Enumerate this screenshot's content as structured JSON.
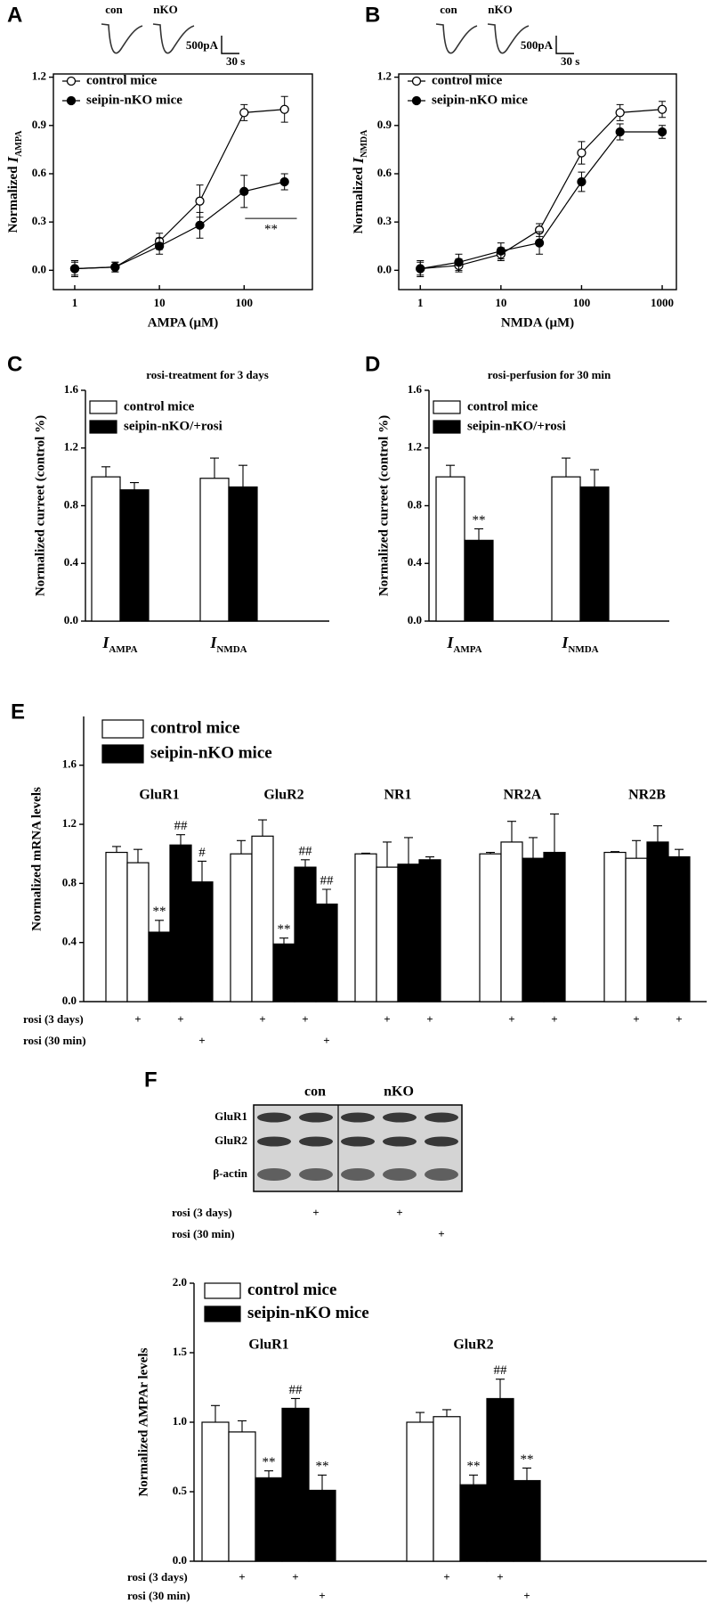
{
  "chart_data": [
    {
      "type": "line",
      "panel": "A",
      "inset": {
        "labels": [
          "con",
          "nKO"
        ],
        "scalebar": [
          "500pA",
          "30 s"
        ]
      },
      "x": [
        1,
        3,
        10,
        30,
        100,
        300
      ],
      "xscale": "log",
      "xlim": [
        0.56,
        640
      ],
      "xticks": [
        1,
        10,
        100
      ],
      "ylim": [
        -0.12,
        1.22
      ],
      "yticks": [
        {
          "value": 0,
          "label": "0.0"
        },
        0.3,
        0.6,
        0.9,
        1.2
      ],
      "xlabel": "AMPA (μM)",
      "ylabel": [
        "Normalized",
        "I",
        "AMPA"
      ],
      "frame": "box",
      "legend_loc": "upper left",
      "annotation": "**",
      "series": [
        {
          "name": "control mice",
          "color": "#000000",
          "marker": "open",
          "values": [
            0.01,
            0.02,
            0.18,
            0.43,
            0.98,
            1.0
          ],
          "errors": [
            0.05,
            0.03,
            0.05,
            0.1,
            0.05,
            0.08
          ]
        },
        {
          "name": "seipin-nKO mice",
          "color": "#000000",
          "marker": "filled",
          "values": [
            0.01,
            0.02,
            0.15,
            0.28,
            0.49,
            0.55
          ],
          "errors": [
            0.04,
            0.03,
            0.05,
            0.08,
            0.1,
            0.05
          ]
        }
      ]
    },
    {
      "type": "line",
      "panel": "B",
      "inset": {
        "labels": [
          "con",
          "nKO"
        ],
        "scalebar": [
          "500pA",
          "30 s"
        ]
      },
      "x": [
        1,
        3,
        10,
        30,
        100,
        300,
        1000
      ],
      "xscale": "log",
      "xlim": [
        0.54,
        1500
      ],
      "xticks": [
        1,
        10,
        100,
        1000
      ],
      "ylim": [
        -0.12,
        1.22
      ],
      "yticks": [
        {
          "value": 0,
          "label": "0.0"
        },
        0.3,
        0.6,
        0.9,
        1.2
      ],
      "xlabel": "NMDA (μM)",
      "ylabel": [
        "Normalized",
        "I",
        "NMDA"
      ],
      "frame": "box",
      "legend_loc": "upper left",
      "series": [
        {
          "name": "control mice",
          "color": "#000000",
          "marker": "open",
          "values": [
            0.01,
            0.03,
            0.1,
            0.25,
            0.73,
            0.98,
            1.0
          ],
          "errors": [
            0.05,
            0.04,
            0.04,
            0.04,
            0.07,
            0.05,
            0.05
          ]
        },
        {
          "name": "seipin-nKO mice",
          "color": "#000000",
          "marker": "filled",
          "values": [
            0.01,
            0.05,
            0.12,
            0.17,
            0.55,
            0.86,
            0.86
          ],
          "errors": [
            0.04,
            0.05,
            0.05,
            0.07,
            0.06,
            0.05,
            0.04
          ]
        }
      ]
    },
    {
      "type": "bar",
      "panel": "C",
      "title": "rosi-treatment for 3 days",
      "categories": [
        "I",
        "I"
      ],
      "category_subscripts": [
        "AMPA",
        "NMDA"
      ],
      "category_position": "bottom",
      "ylim": [
        0,
        1.6
      ],
      "yticks": [
        {
          "value": 0,
          "label": "0.0"
        },
        0.4,
        0.8,
        1.2,
        1.6
      ],
      "ylabel": "Normalized curreet (control %)",
      "frame": "axes",
      "legend_loc": "upper left",
      "series": [
        {
          "name": "control mice",
          "color": "#ffffff",
          "values": [
            1.0,
            0.99
          ],
          "errors": [
            0.07,
            0.14
          ]
        },
        {
          "name": "seipin-nKO/+rosi",
          "color": "#000000",
          "values": [
            0.91,
            0.93
          ],
          "errors": [
            0.05,
            0.15
          ]
        }
      ]
    },
    {
      "type": "bar",
      "panel": "D",
      "title": "rosi-perfusion for 30 min",
      "categories": [
        "I",
        "I"
      ],
      "category_subscripts": [
        "AMPA",
        "NMDA"
      ],
      "category_position": "bottom",
      "ylim": [
        0,
        1.6
      ],
      "yticks": [
        {
          "value": 0,
          "label": "0.0"
        },
        0.4,
        0.8,
        1.2,
        1.6
      ],
      "ylabel": "Normalized curreet (control %)",
      "frame": "axes",
      "legend_loc": "upper left",
      "series": [
        {
          "name": "control mice",
          "color": "#ffffff",
          "values": [
            1.0,
            1.0
          ],
          "errors": [
            0.08,
            0.13
          ]
        },
        {
          "name": "seipin-nKO/+rosi",
          "color": "#000000",
          "values": [
            0.56,
            0.93
          ],
          "errors": [
            0.08,
            0.12
          ],
          "annotations": [
            "**",
            null
          ]
        }
      ]
    },
    {
      "type": "bar",
      "panel": "E",
      "categories": [
        "GluR1",
        "GluR2",
        "NR1",
        "NR2A",
        "NR2B"
      ],
      "category_position": "top",
      "ylim": [
        0,
        1.93
      ],
      "yticks": [
        {
          "value": 0,
          "label": "0.0"
        },
        0.4,
        0.8,
        1.2,
        1.6
      ],
      "ylabel": "Normalized mRNA levels",
      "frame": "axes",
      "legend_loc": "upper left",
      "legend": [
        {
          "name": "control mice",
          "color": "#ffffff"
        },
        {
          "name": "seipin-nKO mice",
          "color": "#000000"
        }
      ],
      "series": [
        {
          "color": "#ffffff",
          "values": [
            1.01,
            1.0,
            1.0,
            1.0,
            1.01
          ],
          "errors": [
            0.04,
            0.09,
            0.005,
            0.01,
            0.005
          ]
        },
        {
          "color": "#ffffff",
          "values": [
            0.94,
            1.12,
            0.91,
            1.08,
            0.97
          ],
          "errors": [
            0.09,
            0.11,
            0.17,
            0.14,
            0.12
          ]
        },
        {
          "color": "#000000",
          "values": [
            0.47,
            0.39,
            0.93,
            0.97,
            1.08
          ],
          "errors": [
            0.08,
            0.04,
            0.18,
            0.14,
            0.11
          ],
          "annotations": [
            "**",
            "**",
            null,
            null,
            null
          ]
        },
        {
          "color": "#000000",
          "values": [
            1.06,
            0.91,
            0.96,
            1.01,
            0.98
          ],
          "errors": [
            0.07,
            0.05,
            0.02,
            0.26,
            0.05
          ],
          "annotations": [
            "##",
            "##",
            null,
            null,
            null
          ]
        },
        {
          "color": "#000000",
          "values": [
            0.81,
            0.66,
            null,
            null,
            null
          ],
          "errors": [
            0.14,
            0.1,
            null,
            null,
            null
          ],
          "annotations": [
            "#",
            "##",
            null,
            null,
            null
          ]
        }
      ],
      "treatment_rows": [
        {
          "label": "rosi (3 days)",
          "signs": [
            null,
            "+",
            null,
            "+",
            null
          ]
        },
        {
          "label": "rosi (30 min)",
          "signs": [
            null,
            null,
            null,
            null,
            "+"
          ]
        }
      ]
    },
    {
      "type": "bar",
      "panel": "F",
      "blot": {
        "columns": [
          "con",
          "nKO"
        ],
        "rows": [
          "GluR1",
          "GluR2",
          "β-actin"
        ]
      },
      "categories": [
        "GluR1",
        "GluR2"
      ],
      "category_position": "top",
      "ylim": [
        0,
        2.0
      ],
      "yticks": [
        {
          "value": 0,
          "label": "0.0"
        },
        0.5,
        {
          "value": 1,
          "label": "1.0"
        },
        1.5,
        {
          "value": 2,
          "label": "2.0"
        }
      ],
      "ylabel": "Normalized AMPAr levels",
      "frame": "axes",
      "legend_loc": "upper left",
      "legend": [
        {
          "name": "control mice",
          "color": "#ffffff"
        },
        {
          "name": "seipin-nKO mice",
          "color": "#000000"
        }
      ],
      "series": [
        {
          "color": "#ffffff",
          "values": [
            1.0,
            1.0
          ],
          "errors": [
            0.12,
            0.07
          ]
        },
        {
          "color": "#ffffff",
          "values": [
            0.93,
            1.04
          ],
          "errors": [
            0.08,
            0.05
          ]
        },
        {
          "color": "#000000",
          "values": [
            0.6,
            0.55
          ],
          "errors": [
            0.05,
            0.07
          ],
          "annotations": [
            "**",
            "**"
          ]
        },
        {
          "color": "#000000",
          "values": [
            1.1,
            1.17
          ],
          "errors": [
            0.07,
            0.14
          ],
          "annotations": [
            "##",
            "##"
          ]
        },
        {
          "color": "#000000",
          "values": [
            0.51,
            0.58
          ],
          "errors": [
            0.11,
            0.09
          ],
          "annotations": [
            "**",
            "**"
          ]
        }
      ],
      "treatment_rows": [
        {
          "label": "rosi (3 days)",
          "signs": [
            null,
            "+",
            null,
            "+",
            null
          ]
        },
        {
          "label": "rosi (30 min)",
          "signs": [
            null,
            null,
            null,
            null,
            "+"
          ]
        }
      ]
    }
  ]
}
